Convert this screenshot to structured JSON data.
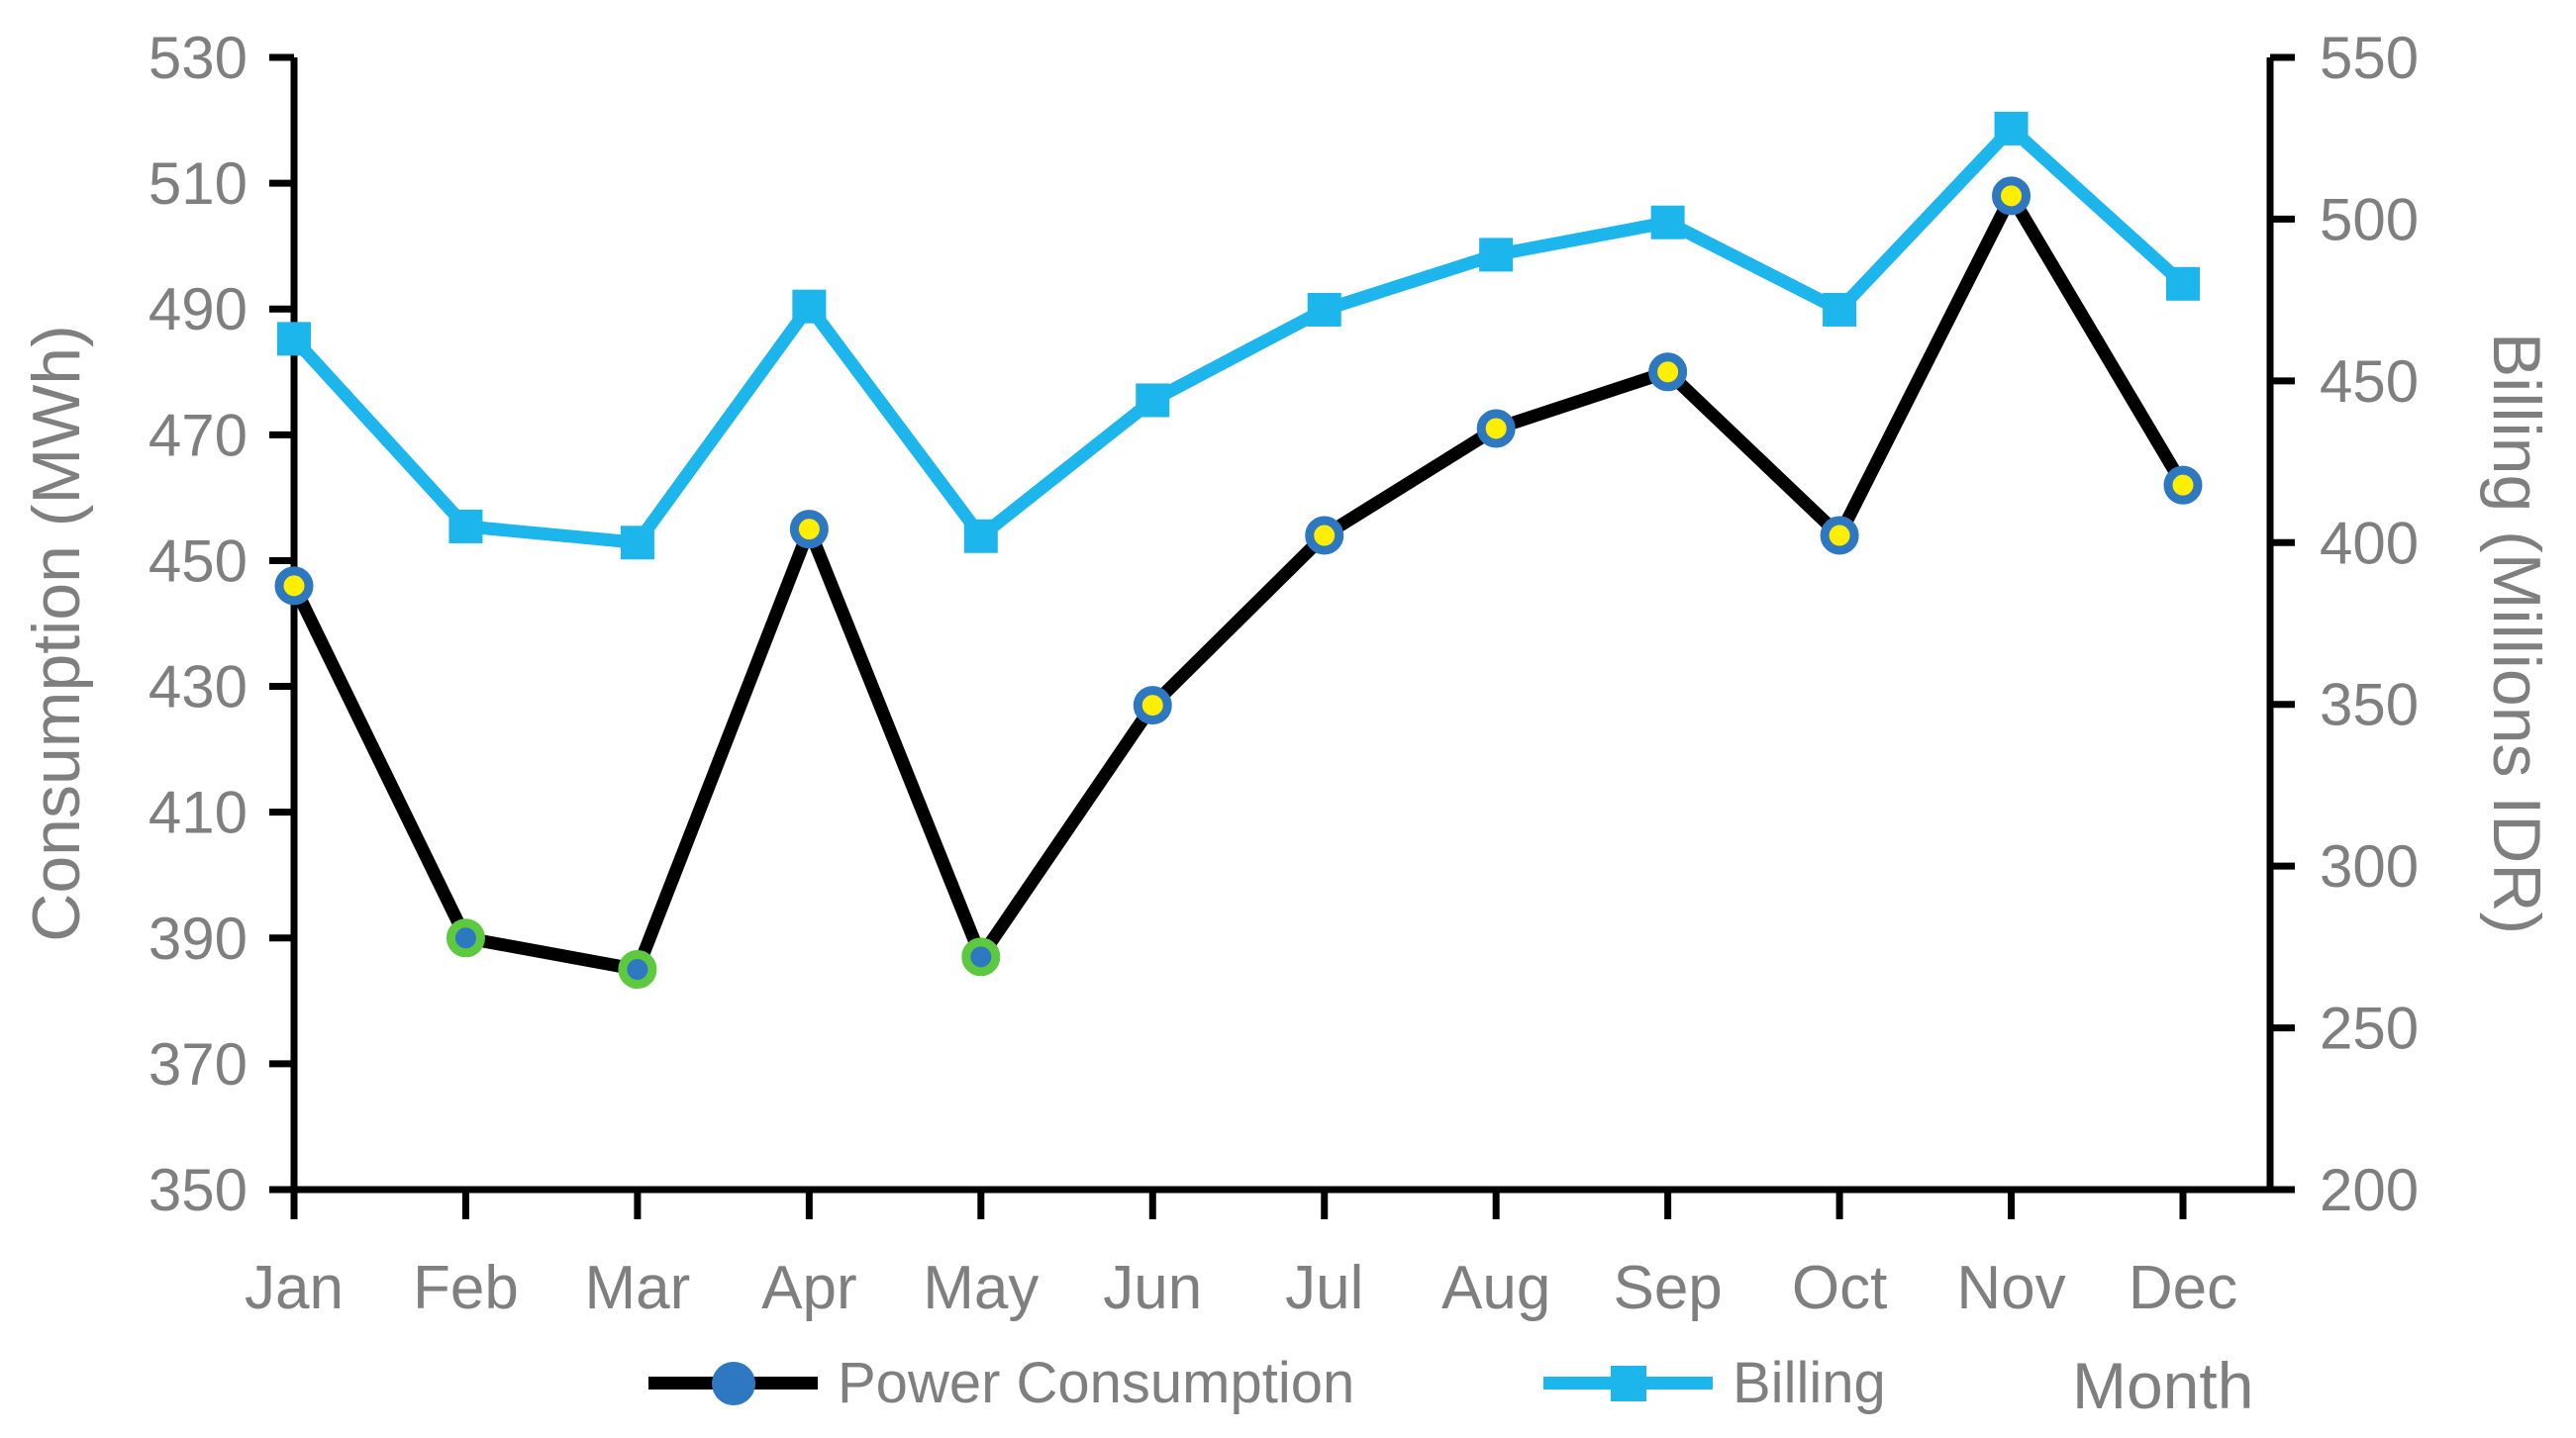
{
  "colors": {
    "background": "#FFFFFF",
    "text_gray": "#7F7F7F",
    "axis_black": "#000000",
    "consumption_line": "#000000",
    "billing_line": "#1CB5EC",
    "marker_blue": "#2E78C2",
    "marker_yellow": "#FFEE00",
    "marker_green_ring": "#5CC93F"
  },
  "chart_data": {
    "type": "line",
    "title": "",
    "categories": [
      "Jan",
      "Feb",
      "Mar",
      "Apr",
      "May",
      "Jun",
      "Jul",
      "Aug",
      "Sep",
      "Oct",
      "Nov",
      "Dec"
    ],
    "series": [
      {
        "name": "Power Consumption",
        "axis": "left",
        "color": "#000000",
        "marker": "circle",
        "marker_default": {
          "ring": "#2E78C2",
          "fill": "#FFEE00"
        },
        "marker_highlight": {
          "ring": "#5CC93F",
          "fill": "#2E78C2"
        },
        "highlight_indices": [
          1,
          2,
          4
        ],
        "values": [
          446,
          390,
          385,
          455,
          387,
          427,
          454,
          471,
          480,
          454,
          508,
          462
        ]
      },
      {
        "name": "Billing",
        "axis": "right",
        "color": "#1CB5EC",
        "marker": "square",
        "values": [
          463,
          405,
          400,
          473,
          402,
          444,
          472,
          489,
          499,
          472,
          528,
          480
        ]
      }
    ],
    "left_axis": {
      "title": "Consumption (MWh)",
      "min": 350,
      "max": 530,
      "step": 20,
      "tick_labels": [
        "530",
        "510",
        "490",
        "470",
        "450",
        "430",
        "410",
        "390",
        "370",
        "350"
      ]
    },
    "right_axis": {
      "title": "Billing (Millions IDR)",
      "min": 200,
      "max": 550,
      "step": 50,
      "tick_labels": [
        "550",
        "500",
        "450",
        "400",
        "350",
        "300",
        "250",
        "200"
      ]
    },
    "x_axis": {
      "title": "Month"
    },
    "legend": {
      "position": "bottom",
      "items": [
        "Power Consumption",
        "Billing"
      ]
    },
    "grid": "off"
  }
}
